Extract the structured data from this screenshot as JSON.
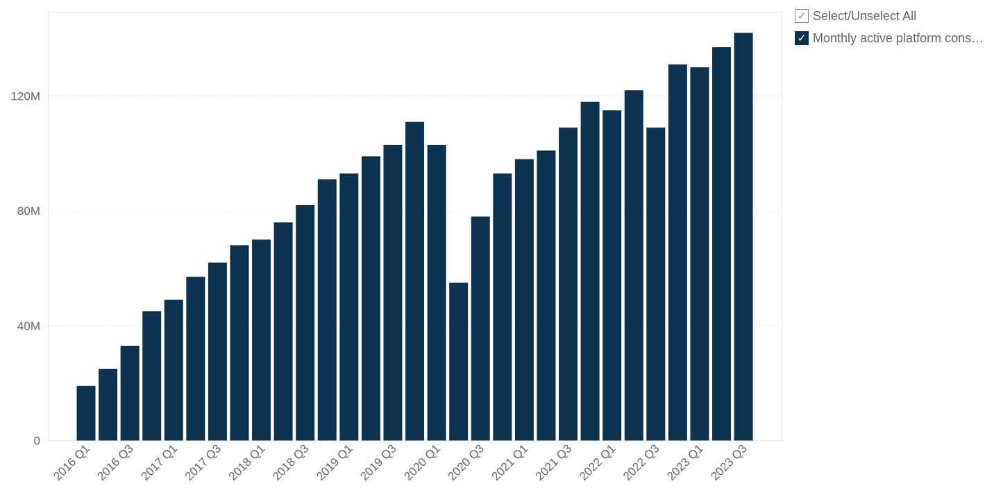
{
  "legend": {
    "select_all_label": "Select/Unselect All",
    "series_label": "Monthly active platform cons…",
    "check_glyph": "✓"
  },
  "chart_data": {
    "type": "bar",
    "categories": [
      "2016 Q1",
      "2016 Q2",
      "2016 Q3",
      "2016 Q4",
      "2017 Q1",
      "2017 Q2",
      "2017 Q3",
      "2017 Q4",
      "2018 Q1",
      "2018 Q2",
      "2018 Q3",
      "2018 Q4",
      "2019 Q1",
      "2019 Q2",
      "2019 Q3",
      "2019 Q4",
      "2020 Q1",
      "2020 Q2",
      "2020 Q3",
      "2020 Q4",
      "2021 Q1",
      "2021 Q2",
      "2021 Q3",
      "2021 Q4",
      "2022 Q1",
      "2022 Q2",
      "2022 Q3",
      "2022 Q4",
      "2023 Q1",
      "2023 Q2",
      "2023 Q3"
    ],
    "x_tick_labels": [
      "2016 Q1",
      "2016 Q3",
      "2017 Q1",
      "2017 Q3",
      "2018 Q1",
      "2018 Q3",
      "2019 Q1",
      "2019 Q3",
      "2020 Q1",
      "2020 Q3",
      "2021 Q1",
      "2021 Q3",
      "2022 Q1",
      "2022 Q3",
      "2023 Q1",
      "2023 Q3"
    ],
    "series": [
      {
        "name": "Monthly active platform cons…",
        "color": "#0b3350",
        "values": [
          19,
          25,
          33,
          45,
          49,
          57,
          62,
          68,
          70,
          76,
          82,
          91,
          93,
          99,
          103,
          111,
          103,
          55,
          78,
          93,
          98,
          101,
          109,
          118,
          115,
          122,
          109,
          131,
          130,
          137,
          142
        ]
      }
    ],
    "value_unit": "M",
    "y_ticks": [
      0,
      40,
      80,
      120
    ],
    "y_tick_labels": [
      "0",
      "40M",
      "80M",
      "120M"
    ],
    "ylim": [
      0,
      150
    ],
    "grid": true,
    "legend_position": "top-right",
    "title": "",
    "xlabel": "",
    "ylabel": ""
  }
}
